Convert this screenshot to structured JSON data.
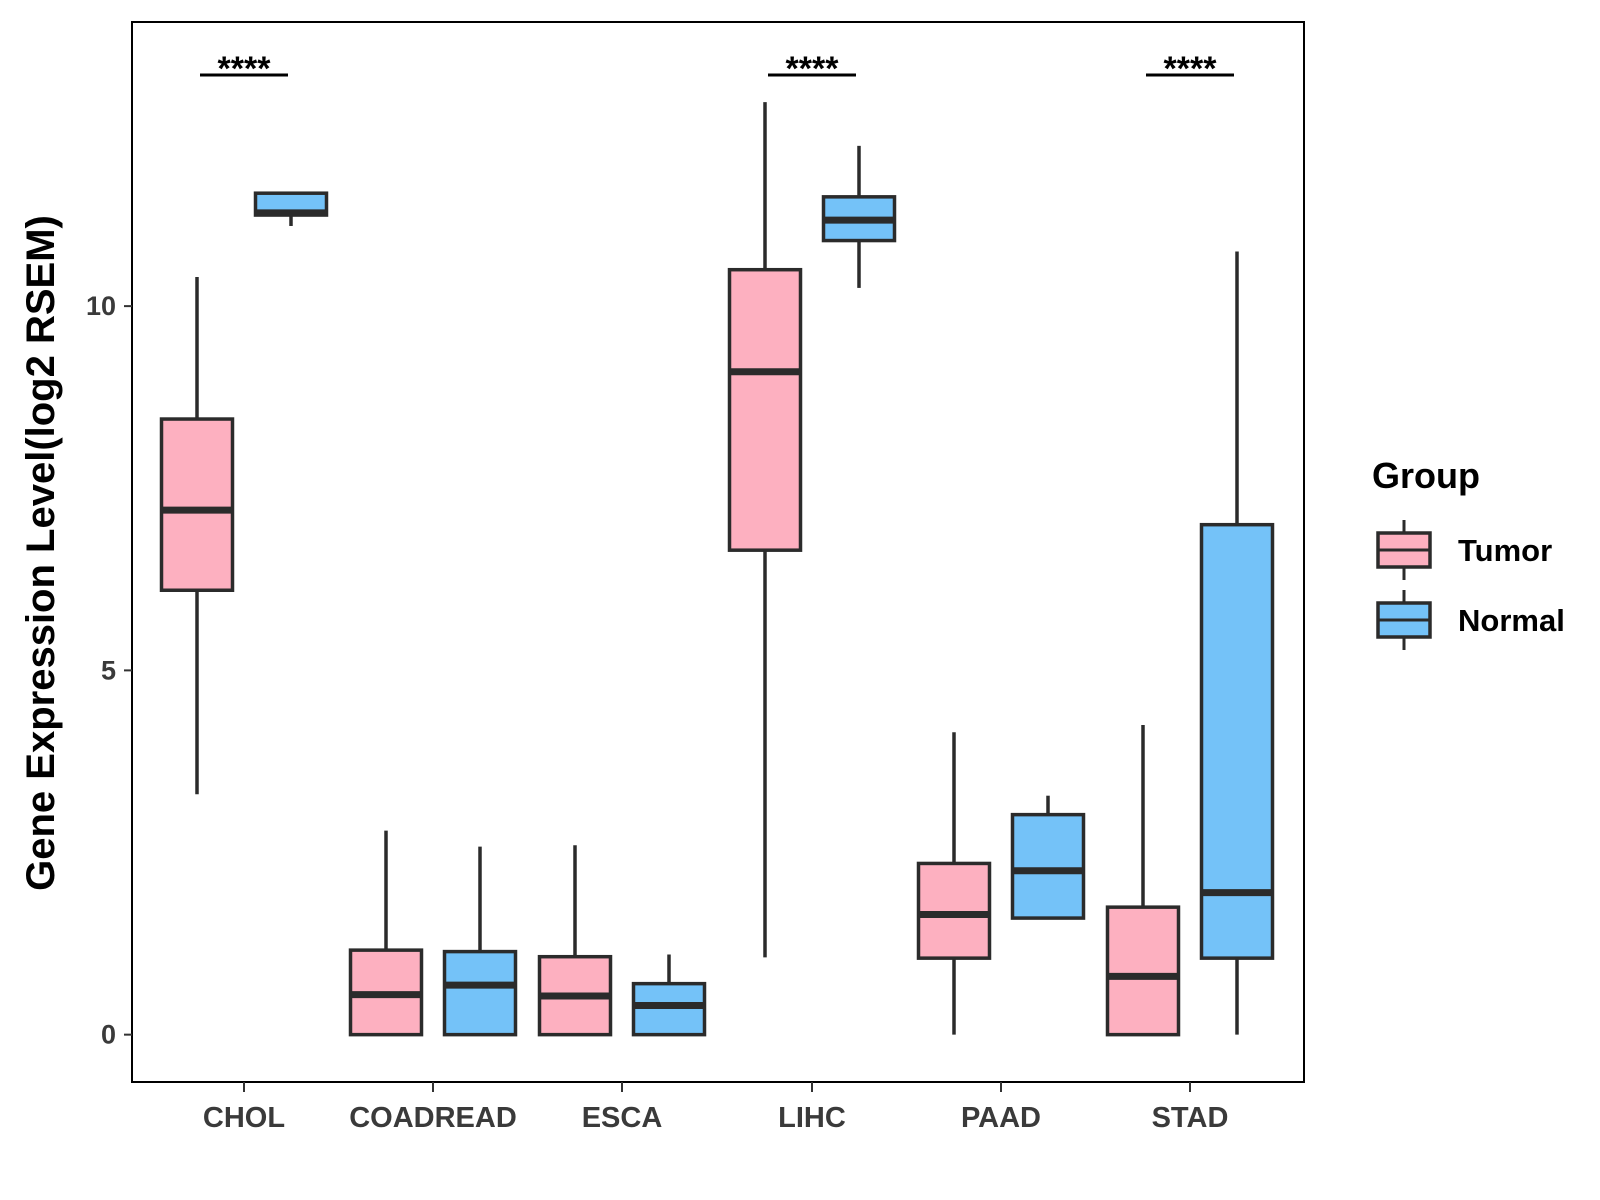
{
  "chart_data": {
    "type": "boxplot",
    "title": "",
    "xlabel": "",
    "ylabel": "Gene Expression Level(log2 RSEM)",
    "ylim": [
      -0.65,
      13.9
    ],
    "yticks": [
      0,
      5,
      10
    ],
    "categories": [
      "CHOL",
      "COADREAD",
      "ESCA",
      "LIHC",
      "PAAD",
      "STAD"
    ],
    "legend": {
      "title": "Group",
      "position": "right",
      "entries": [
        {
          "name": "Tumor",
          "color": "#FDB0C0"
        },
        {
          "name": "Normal",
          "color": "#74C2F8"
        }
      ]
    },
    "series": [
      {
        "name": "Tumor",
        "color": "#FDB0C0",
        "boxes": [
          {
            "category": "CHOL",
            "min": 3.3,
            "q1": 6.1,
            "median": 7.2,
            "q3": 8.45,
            "max": 10.4
          },
          {
            "category": "COADREAD",
            "min": 0,
            "q1": 0,
            "median": 0.55,
            "q3": 1.16,
            "max": 2.8
          },
          {
            "category": "ESCA",
            "min": 0,
            "q1": 0,
            "median": 0.53,
            "q3": 1.07,
            "max": 2.6
          },
          {
            "category": "LIHC",
            "min": 1.06,
            "q1": 6.65,
            "median": 9.1,
            "q3": 10.5,
            "max": 12.8
          },
          {
            "category": "PAAD",
            "min": 0,
            "q1": 1.05,
            "median": 1.65,
            "q3": 2.35,
            "max": 4.15
          },
          {
            "category": "STAD",
            "min": 0,
            "q1": 0,
            "median": 0.8,
            "q3": 1.75,
            "max": 4.25
          }
        ]
      },
      {
        "name": "Normal",
        "color": "#74C2F8",
        "boxes": [
          {
            "category": "CHOL",
            "min": 11.1,
            "q1": 11.25,
            "median": 11.28,
            "q3": 11.55,
            "max": 11.55
          },
          {
            "category": "COADREAD",
            "min": 0,
            "q1": 0,
            "median": 0.68,
            "q3": 1.14,
            "max": 2.58
          },
          {
            "category": "ESCA",
            "min": 0,
            "q1": 0,
            "median": 0.4,
            "q3": 0.7,
            "max": 1.1
          },
          {
            "category": "LIHC",
            "min": 10.25,
            "q1": 10.9,
            "median": 11.18,
            "q3": 11.5,
            "max": 12.2
          },
          {
            "category": "PAAD",
            "min": 1.6,
            "q1": 1.6,
            "median": 2.25,
            "q3": 3.02,
            "max": 3.28
          },
          {
            "category": "STAD",
            "min": 0,
            "q1": 1.05,
            "median": 1.95,
            "q3": 7.0,
            "max": 10.75
          }
        ]
      }
    ],
    "significance": [
      {
        "category": "CHOL",
        "label": "****"
      },
      {
        "category": "LIHC",
        "label": "****"
      },
      {
        "category": "STAD",
        "label": "****"
      }
    ]
  }
}
